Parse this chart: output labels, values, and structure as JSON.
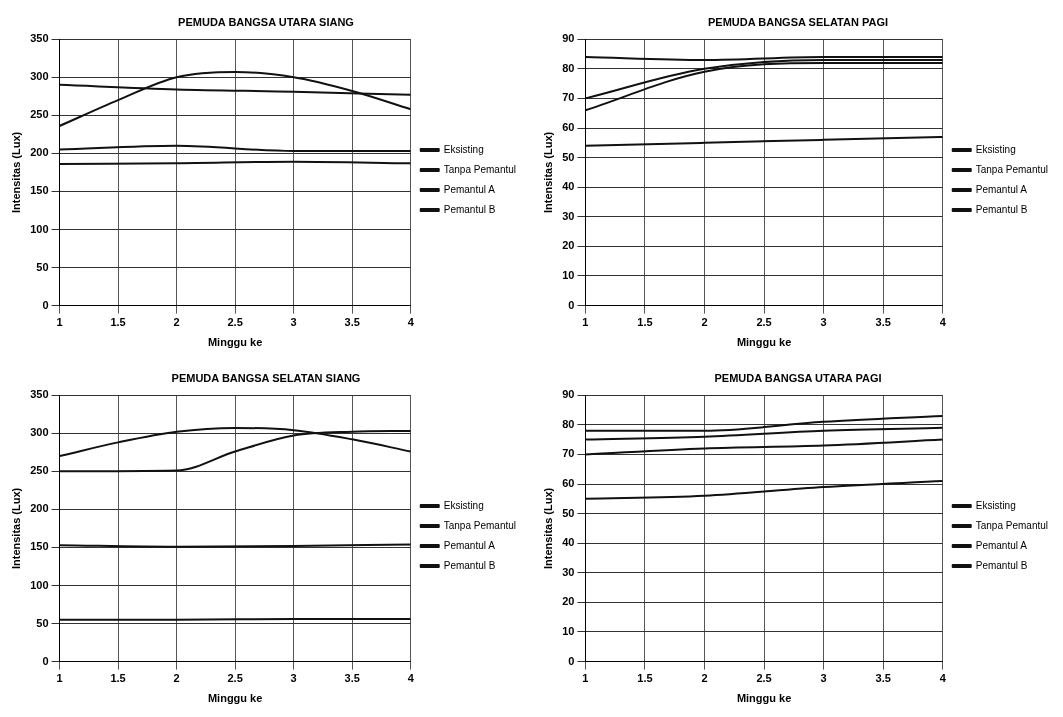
{
  "chart_data": [
    {
      "type": "line",
      "title": "PEMUDA BANGSA UTARA SIANG",
      "xlabel": "Minggu ke",
      "ylabel": "Intensitas (Lux)",
      "xlim": [
        1,
        4
      ],
      "xticks": [
        1,
        1.5,
        2,
        2.5,
        3,
        3.5,
        4
      ],
      "ylim": [
        0,
        350
      ],
      "yticks": [
        0,
        50,
        100,
        150,
        200,
        250,
        300,
        350
      ],
      "grid": true,
      "legend": "right",
      "marker": "none",
      "line_style": "solid",
      "series": [
        {
          "name": "Eksisting",
          "color": "#111111",
          "x": [
            1,
            1.5,
            2,
            2.5,
            3,
            3.5,
            4
          ],
          "values": [
            236,
            270,
            300,
            307,
            300,
            282,
            258
          ]
        },
        {
          "name": "Tanpa Pemantul",
          "color": "#111111",
          "x": [
            1,
            2,
            3,
            4
          ],
          "values": [
            290,
            284,
            281,
            277
          ]
        },
        {
          "name": "Pemantul A",
          "color": "#111111",
          "x": [
            1,
            2,
            3,
            4
          ],
          "values": [
            205,
            210,
            203,
            203
          ]
        },
        {
          "name": "Pemantul B",
          "color": "#111111",
          "x": [
            1,
            2,
            3,
            4
          ],
          "values": [
            186,
            187,
            189,
            187
          ]
        }
      ]
    },
    {
      "type": "line",
      "title": "PEMUDA BANGSA SELATAN PAGI",
      "xlabel": "Minggu ke",
      "ylabel": "Intensitas (Lux)",
      "xlim": [
        1,
        4
      ],
      "xticks": [
        1,
        1.5,
        2,
        2.5,
        3,
        3.5,
        4
      ],
      "ylim": [
        0,
        90
      ],
      "yticks": [
        0,
        10,
        20,
        30,
        40,
        50,
        60,
        70,
        80,
        90
      ],
      "grid": true,
      "legend": "right",
      "marker": "none",
      "line_style": "solid",
      "series": [
        {
          "name": "Eksisting",
          "color": "#111111",
          "x": [
            1,
            2,
            3,
            4
          ],
          "values": [
            84,
            83,
            84,
            84
          ]
        },
        {
          "name": "Tanpa Pemantul",
          "color": "#111111",
          "x": [
            1,
            2,
            3,
            4
          ],
          "values": [
            70,
            80,
            83,
            83
          ]
        },
        {
          "name": "Pemantul A",
          "color": "#111111",
          "x": [
            1,
            2,
            3,
            4
          ],
          "values": [
            66,
            79,
            82,
            82
          ]
        },
        {
          "name": "Pemantul B",
          "color": "#111111",
          "x": [
            1,
            2,
            3,
            4
          ],
          "values": [
            54,
            55,
            56,
            57
          ]
        }
      ]
    },
    {
      "type": "line",
      "title": "PEMUDA BANGSA SELATAN SIANG",
      "xlabel": "Minggu ke",
      "ylabel": "Intensitas (Lux)",
      "xlim": [
        1,
        4
      ],
      "xticks": [
        1,
        1.5,
        2,
        2.5,
        3,
        3.5,
        4
      ],
      "ylim": [
        0,
        350
      ],
      "yticks": [
        0,
        50,
        100,
        150,
        200,
        250,
        300,
        350
      ],
      "grid": true,
      "legend": "right",
      "marker": "none",
      "line_style": "solid",
      "series": [
        {
          "name": "Eksisting",
          "color": "#111111",
          "x": [
            1,
            1.5,
            2,
            2.5,
            3,
            3.5,
            4
          ],
          "values": [
            270,
            288,
            302,
            307,
            304,
            292,
            276
          ]
        },
        {
          "name": "Tanpa Pemantul",
          "color": "#111111",
          "x": [
            1,
            2,
            2.5,
            3,
            3.5,
            4
          ],
          "values": [
            250,
            251,
            276,
            297,
            302,
            303
          ]
        },
        {
          "name": "Pemantul A",
          "color": "#111111",
          "x": [
            1,
            2,
            3,
            4
          ],
          "values": [
            153,
            151,
            152,
            154
          ]
        },
        {
          "name": "Pemantul B",
          "color": "#111111",
          "x": [
            1,
            2,
            3,
            4
          ],
          "values": [
            55,
            55,
            56,
            56
          ]
        }
      ]
    },
    {
      "type": "line",
      "title": "PEMUDA BANGSA UTARA PAGI",
      "xlabel": "Minggu ke",
      "ylabel": "Intensitas (Lux)",
      "xlim": [
        1,
        4
      ],
      "xticks": [
        1,
        1.5,
        2,
        2.5,
        3,
        3.5,
        4
      ],
      "ylim": [
        0,
        90
      ],
      "yticks": [
        0,
        10,
        20,
        30,
        40,
        50,
        60,
        70,
        80,
        90
      ],
      "grid": true,
      "legend": "right",
      "marker": "none",
      "line_style": "solid",
      "series": [
        {
          "name": "Eksisting",
          "color": "#111111",
          "x": [
            1,
            2,
            3,
            4
          ],
          "values": [
            78,
            78,
            81,
            83
          ]
        },
        {
          "name": "Tanpa Pemantul",
          "color": "#111111",
          "x": [
            1,
            2,
            3,
            4
          ],
          "values": [
            75,
            76,
            78,
            79
          ]
        },
        {
          "name": "Pemantul A",
          "color": "#111111",
          "x": [
            1,
            2,
            3,
            4
          ],
          "values": [
            70,
            72,
            73,
            75
          ]
        },
        {
          "name": "Pemantul B",
          "color": "#111111",
          "x": [
            1,
            2,
            3,
            4
          ],
          "values": [
            55,
            56,
            59,
            61
          ]
        }
      ]
    }
  ]
}
